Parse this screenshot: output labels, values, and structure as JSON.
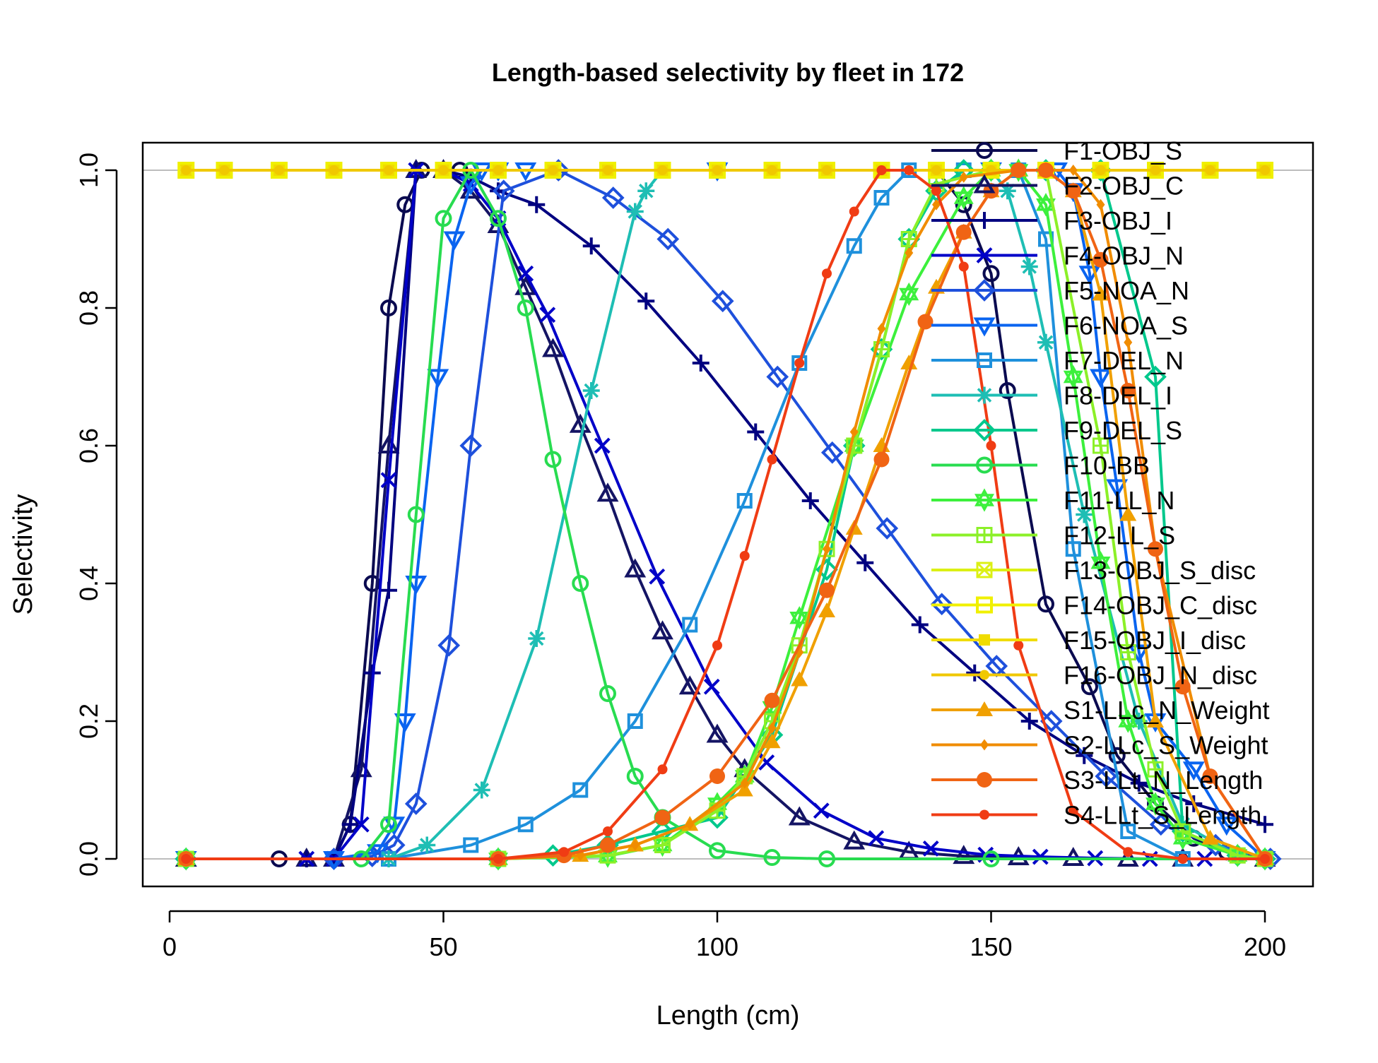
{
  "chart_data": {
    "type": "line",
    "title": "Length-based selectivity by fleet in 172",
    "xlabel": "Length (cm)",
    "ylabel": "Selectivity",
    "xlim": [
      0,
      205
    ],
    "ylim": [
      0,
      1.03
    ],
    "xticks": [
      0,
      50,
      100,
      150,
      200
    ],
    "yticks": [
      0.0,
      0.2,
      0.4,
      0.6,
      0.8,
      1.0
    ],
    "xtick_labels": [
      "0",
      "50",
      "100",
      "150",
      "200"
    ],
    "ytick_labels": [
      "0.0",
      "0.2",
      "0.4",
      "0.6",
      "0.8",
      "1.0"
    ],
    "gridlines_y": [
      0,
      1
    ],
    "legend_position": "top-right",
    "series": [
      {
        "name": "F1-OBJ_S",
        "color": "#0a0a50",
        "marker": "circle",
        "x": [
          3,
          20,
          30,
          33,
          37,
          40,
          43,
          46,
          50,
          53,
          60,
          70,
          80,
          90,
          100,
          110,
          120,
          130,
          140,
          145,
          150,
          153,
          160,
          168,
          173,
          180,
          187,
          193,
          200
        ],
        "y": [
          0,
          0,
          0,
          0.05,
          0.4,
          0.8,
          0.95,
          1,
          1,
          1,
          1,
          1,
          1,
          1,
          1,
          1,
          1,
          1,
          1,
          0.95,
          0.85,
          0.68,
          0.37,
          0.25,
          0.15,
          0.08,
          0.03,
          0.01,
          0
        ]
      },
      {
        "name": "F2-OBJ_C",
        "color": "#141464",
        "marker": "triangle",
        "x": [
          3,
          25,
          30,
          35,
          40,
          45,
          50,
          55,
          60,
          65,
          70,
          75,
          80,
          85,
          90,
          95,
          100,
          105,
          115,
          125,
          135,
          145,
          155,
          165,
          175,
          185,
          200
        ],
        "y": [
          0,
          0,
          0,
          0.13,
          0.6,
          1,
          1,
          0.97,
          0.92,
          0.83,
          0.74,
          0.63,
          0.53,
          0.42,
          0.33,
          0.25,
          0.18,
          0.13,
          0.06,
          0.025,
          0.01,
          0.004,
          0.002,
          0.001,
          0,
          0,
          0
        ]
      },
      {
        "name": "F3-OBJ_I",
        "color": "#000080",
        "marker": "plus",
        "x": [
          3,
          25,
          30,
          33,
          37,
          40,
          45,
          50,
          55,
          60,
          67,
          77,
          87,
          97,
          107,
          117,
          127,
          137,
          147,
          157,
          167,
          177,
          187,
          200
        ],
        "y": [
          0,
          0,
          0,
          0.05,
          0.27,
          0.39,
          1,
          1,
          0.99,
          0.97,
          0.95,
          0.89,
          0.81,
          0.72,
          0.62,
          0.52,
          0.43,
          0.34,
          0.27,
          0.2,
          0.15,
          0.11,
          0.08,
          0.05
        ]
      },
      {
        "name": "F4-OBJ_N",
        "color": "#0000c8",
        "marker": "cross",
        "x": [
          3,
          25,
          30,
          35,
          40,
          45,
          50,
          55,
          60,
          65,
          69,
          79,
          89,
          99,
          109,
          119,
          129,
          139,
          149,
          159,
          169,
          179,
          189,
          200
        ],
        "y": [
          0,
          0,
          0,
          0.05,
          0.55,
          1,
          1,
          0.98,
          0.93,
          0.85,
          0.79,
          0.6,
          0.41,
          0.25,
          0.14,
          0.07,
          0.03,
          0.015,
          0.006,
          0.003,
          0.001,
          0,
          0,
          0
        ]
      },
      {
        "name": "F5-NOA_N",
        "color": "#1e50dc",
        "marker": "diamond",
        "x": [
          3,
          30,
          37,
          41,
          45,
          51,
          55,
          61,
          71,
          81,
          91,
          101,
          111,
          121,
          131,
          141,
          151,
          161,
          171,
          181,
          191,
          201
        ],
        "y": [
          0,
          0,
          0.004,
          0.02,
          0.08,
          0.31,
          0.6,
          0.97,
          1,
          0.96,
          0.9,
          0.81,
          0.7,
          0.59,
          0.48,
          0.37,
          0.28,
          0.2,
          0.12,
          0.05,
          0.02,
          0
        ]
      },
      {
        "name": "F6-NOA_S",
        "color": "#0a64f0",
        "marker": "triangle-down",
        "x": [
          3,
          30,
          38,
          41,
          43,
          45,
          49,
          52,
          55,
          57,
          60,
          65,
          100,
          150,
          162,
          165,
          168,
          170,
          173,
          177,
          180,
          187,
          193,
          200
        ],
        "y": [
          0,
          0,
          0.01,
          0.05,
          0.2,
          0.4,
          0.7,
          0.9,
          0.98,
          1,
          1,
          1,
          1,
          1,
          1,
          0.97,
          0.85,
          0.7,
          0.54,
          0.3,
          0.2,
          0.13,
          0.05,
          0
        ]
      },
      {
        "name": "F7-DEL_N",
        "color": "#1e90dc",
        "marker": "square",
        "x": [
          3,
          40,
          55,
          65,
          75,
          85,
          95,
          105,
          115,
          125,
          130,
          135,
          145,
          155,
          160,
          165,
          175,
          185,
          200
        ],
        "y": [
          0,
          0,
          0.02,
          0.05,
          0.1,
          0.2,
          0.34,
          0.52,
          0.72,
          0.89,
          0.96,
          1,
          1,
          1,
          0.9,
          0.45,
          0.04,
          0,
          0
        ]
      },
      {
        "name": "F8-DEL_I",
        "color": "#1ebeb4",
        "marker": "asterisk",
        "x": [
          3,
          40,
          47,
          57,
          67,
          77,
          85,
          87,
          90,
          100,
          120,
          140,
          150,
          153,
          157,
          160,
          167,
          177,
          185,
          195,
          200
        ],
        "y": [
          0,
          0,
          0.02,
          0.1,
          0.32,
          0.68,
          0.94,
          0.97,
          1,
          1,
          1,
          1,
          1,
          0.97,
          0.86,
          0.75,
          0.5,
          0.2,
          0.05,
          0.005,
          0
        ]
      },
      {
        "name": "F9-DEL_S",
        "color": "#00c88c",
        "marker": "diamond",
        "x": [
          3,
          60,
          70,
          80,
          90,
          100,
          110,
          120,
          125,
          130,
          135,
          140,
          145,
          150,
          160,
          170,
          180,
          185,
          195,
          200
        ],
        "y": [
          0,
          0,
          0.005,
          0.02,
          0.04,
          0.06,
          0.18,
          0.42,
          0.6,
          0.74,
          0.9,
          0.97,
          1,
          1,
          1,
          1,
          0.7,
          0.04,
          0.005,
          0
        ]
      },
      {
        "name": "F10-BB",
        "color": "#28dc50",
        "marker": "circle",
        "x": [
          3,
          35,
          40,
          45,
          50,
          55,
          60,
          65,
          70,
          75,
          80,
          85,
          90,
          100,
          110,
          120,
          150,
          200
        ],
        "y": [
          0,
          0,
          0.05,
          0.5,
          0.93,
          1,
          0.93,
          0.8,
          0.58,
          0.4,
          0.24,
          0.12,
          0.06,
          0.012,
          0.002,
          0,
          0,
          0
        ]
      },
      {
        "name": "F11-LL_N",
        "color": "#3cf03c",
        "marker": "star-of-david",
        "x": [
          3,
          60,
          80,
          90,
          100,
          105,
          110,
          115,
          125,
          135,
          145,
          150,
          155,
          160,
          165,
          170,
          175,
          180,
          185,
          195,
          200
        ],
        "y": [
          0,
          0,
          0.004,
          0.02,
          0.08,
          0.12,
          0.22,
          0.35,
          0.6,
          0.82,
          0.96,
          1,
          1,
          0.95,
          0.7,
          0.43,
          0.2,
          0.08,
          0.03,
          0.005,
          0
        ]
      },
      {
        "name": "F12-LL_S",
        "color": "#8cf028",
        "marker": "square-plus",
        "x": [
          3,
          60,
          80,
          90,
          100,
          105,
          110,
          115,
          120,
          125,
          130,
          135,
          140,
          150,
          160,
          170,
          175,
          180,
          185,
          195,
          200
        ],
        "y": [
          0,
          0,
          0.005,
          0.02,
          0.07,
          0.12,
          0.2,
          0.31,
          0.45,
          0.6,
          0.74,
          0.9,
          0.98,
          1,
          1,
          0.6,
          0.3,
          0.13,
          0.04,
          0.005,
          0
        ]
      },
      {
        "name": "F13-OBJ_S_disc",
        "color": "#dcf014",
        "marker": "square-x",
        "x": [
          3,
          10,
          20,
          30,
          40,
          50,
          60,
          70,
          80,
          90,
          100,
          110,
          120,
          130,
          140,
          150,
          160,
          170,
          180,
          190,
          200
        ],
        "y": [
          1,
          1,
          1,
          1,
          1,
          1,
          1,
          1,
          1,
          1,
          1,
          1,
          1,
          1,
          1,
          1,
          1,
          1,
          1,
          1,
          1
        ]
      },
      {
        "name": "F14-OBJ_C_disc",
        "color": "#f0f000",
        "marker": "square-open",
        "x": [
          3,
          10,
          20,
          30,
          40,
          50,
          60,
          70,
          80,
          90,
          100,
          110,
          120,
          130,
          140,
          150,
          160,
          170,
          180,
          190,
          200
        ],
        "y": [
          1,
          1,
          1,
          1,
          1,
          1,
          1,
          1,
          1,
          1,
          1,
          1,
          1,
          1,
          1,
          1,
          1,
          1,
          1,
          1,
          1
        ]
      },
      {
        "name": "F15-OBJ_I_disc",
        "color": "#f0dc00",
        "marker": "square-filled",
        "x": [
          3,
          10,
          20,
          30,
          40,
          50,
          60,
          70,
          80,
          90,
          100,
          110,
          120,
          130,
          140,
          150,
          160,
          170,
          180,
          190,
          200
        ],
        "y": [
          1,
          1,
          1,
          1,
          1,
          1,
          1,
          1,
          1,
          1,
          1,
          1,
          1,
          1,
          1,
          1,
          1,
          1,
          1,
          1,
          1
        ]
      },
      {
        "name": "F16-OBJ_N_disc",
        "color": "#f0c800",
        "marker": "dot",
        "x": [
          3,
          10,
          20,
          30,
          40,
          50,
          60,
          70,
          80,
          90,
          100,
          110,
          120,
          130,
          140,
          150,
          160,
          170,
          180,
          190,
          200
        ],
        "y": [
          1,
          1,
          1,
          1,
          1,
          1,
          1,
          1,
          1,
          1,
          1,
          1,
          1,
          1,
          1,
          1,
          1,
          1,
          1,
          1,
          1
        ]
      },
      {
        "name": "S1-LLc_N_Weight",
        "color": "#f0a000",
        "marker": "triangle-filled",
        "x": [
          3,
          60,
          75,
          85,
          95,
          105,
          110,
          115,
          120,
          125,
          130,
          135,
          140,
          145,
          150,
          155,
          160,
          165,
          170,
          175,
          180,
          190,
          200
        ],
        "y": [
          0,
          0,
          0.005,
          0.02,
          0.05,
          0.1,
          0.17,
          0.26,
          0.36,
          0.48,
          0.6,
          0.72,
          0.83,
          0.91,
          0.97,
          1,
          1,
          0.97,
          0.82,
          0.5,
          0.2,
          0.03,
          0
        ]
      },
      {
        "name": "S2-LLc_S_Weight",
        "color": "#f08c00",
        "marker": "small-diamond",
        "x": [
          3,
          60,
          75,
          85,
          95,
          105,
          110,
          115,
          120,
          125,
          130,
          135,
          140,
          145,
          155,
          165,
          170,
          175,
          180,
          190,
          200
        ],
        "y": [
          0,
          0,
          0.005,
          0.02,
          0.05,
          0.11,
          0.19,
          0.3,
          0.45,
          0.62,
          0.77,
          0.88,
          0.95,
          0.99,
          1,
          1,
          0.95,
          0.75,
          0.45,
          0.12,
          0
        ]
      },
      {
        "name": "S3-LLt_N_Length",
        "color": "#f06414",
        "marker": "circle-filled",
        "x": [
          3,
          60,
          72,
          80,
          90,
          100,
          110,
          120,
          130,
          138,
          145,
          150,
          155,
          160,
          165,
          170,
          175,
          180,
          185,
          190,
          200
        ],
        "y": [
          0,
          0,
          0.005,
          0.02,
          0.06,
          0.12,
          0.23,
          0.39,
          0.58,
          0.78,
          0.91,
          0.97,
          1,
          1,
          0.97,
          0.87,
          0.68,
          0.45,
          0.25,
          0.12,
          0
        ]
      },
      {
        "name": "S4-LLt_S_Length",
        "color": "#f03c14",
        "marker": "dot-filled",
        "x": [
          3,
          60,
          72,
          80,
          90,
          100,
          105,
          110,
          115,
          120,
          125,
          130,
          135,
          140,
          145,
          150,
          155,
          165,
          175,
          185,
          200
        ],
        "y": [
          0,
          0,
          0.01,
          0.04,
          0.13,
          0.31,
          0.44,
          0.58,
          0.72,
          0.85,
          0.94,
          1,
          1,
          0.97,
          0.86,
          0.6,
          0.31,
          0.07,
          0.01,
          0,
          0
        ]
      }
    ]
  }
}
